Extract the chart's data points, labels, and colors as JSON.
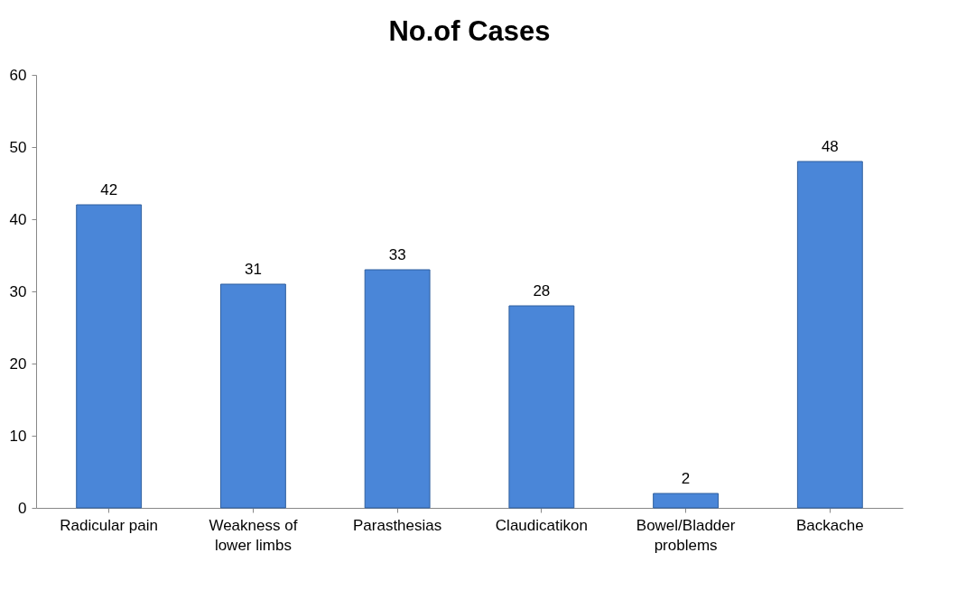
{
  "chart_data": {
    "type": "bar",
    "title": "No.of Cases",
    "categories": [
      "Radicular pain",
      "Weakness of lower limbs",
      "Parasthesias",
      "Claudicatikon",
      "Bowel/Bladder problems",
      "Backache"
    ],
    "values": [
      42,
      31,
      33,
      28,
      2,
      48
    ],
    "color": "#4a86d8",
    "ylim": [
      0,
      60
    ],
    "yticks": [
      0,
      10,
      20,
      30,
      40,
      50,
      60
    ],
    "grid": false,
    "data_labels": true
  }
}
